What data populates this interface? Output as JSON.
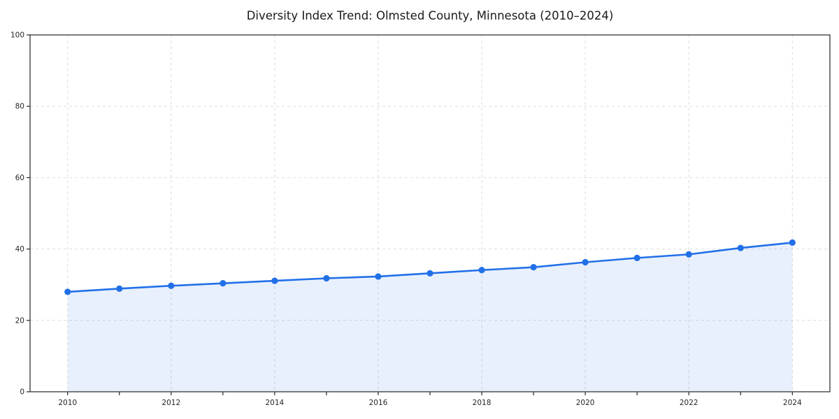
{
  "page": {
    "background_color": "#ffffff"
  },
  "chart_data": {
    "type": "line",
    "subtype": "area-filled-line-with-markers",
    "title": "Diversity Index Trend: Olmsted County, Minnesota (2010–2024)",
    "xlabel": "",
    "ylabel": "",
    "x": [
      2010,
      2011,
      2012,
      2013,
      2014,
      2015,
      2016,
      2017,
      2018,
      2019,
      2020,
      2021,
      2022,
      2023,
      2024
    ],
    "series": [
      {
        "name": "Diversity Index",
        "values": [
          28.0,
          28.9,
          29.7,
          30.4,
          31.1,
          31.8,
          32.3,
          33.2,
          34.1,
          34.9,
          36.3,
          37.5,
          38.5,
          40.3,
          41.8
        ]
      }
    ],
    "ylim": [
      0,
      100
    ],
    "y_ticks": [
      0,
      20,
      40,
      60,
      80,
      100
    ],
    "x_tick_labels": [
      "2010",
      "2012",
      "2014",
      "2016",
      "2018",
      "2020",
      "2022",
      "2024"
    ],
    "x_ticks_labeled_years": [
      2010,
      2012,
      2014,
      2016,
      2018,
      2020,
      2022,
      2024
    ],
    "x_minor_ticks_every_year": true,
    "grid": {
      "horizontal_at": [
        20,
        40,
        60,
        80
      ],
      "vertical_at_years": [
        2010,
        2012,
        2014,
        2016,
        2018,
        2020,
        2022,
        2024
      ],
      "style": "dashed"
    },
    "legend": "none",
    "frame": "full-box",
    "colors": {
      "line": "#2170e8",
      "marker": "#2170e8",
      "area_fill": "rgba(33,112,232,0.10)",
      "grid": "#dddddd",
      "axis": "#262626",
      "text": "#1a1a1a"
    }
  }
}
